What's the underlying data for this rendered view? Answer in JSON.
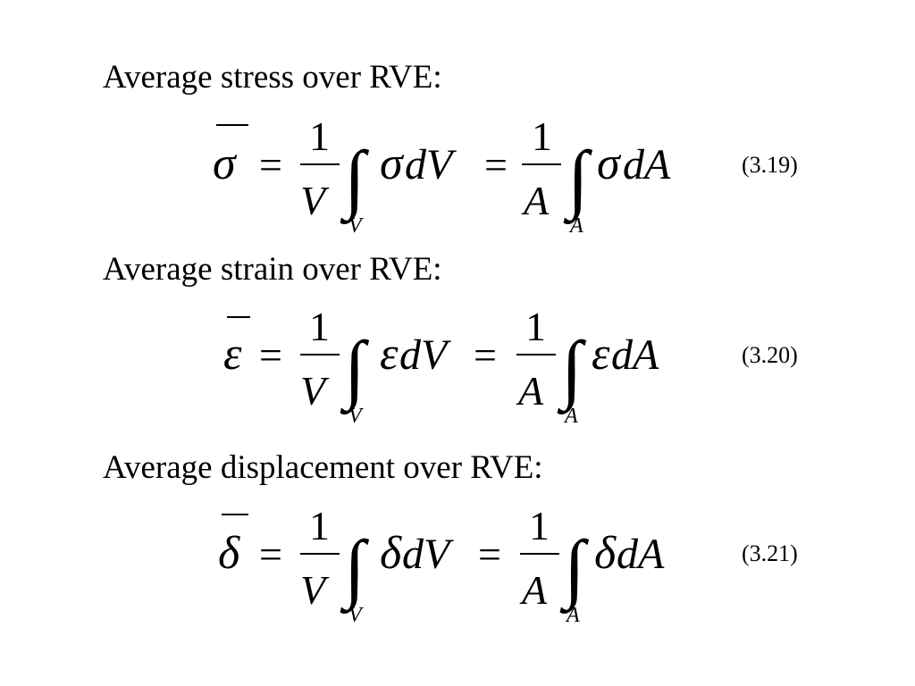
{
  "sections": [
    {
      "heading": "Average stress over RVE:",
      "number": "(3.19)",
      "symbol": "σ",
      "equals": "=",
      "one": "1",
      "dV": "dV",
      "dA": "dA",
      "V": "V",
      "A": "A"
    },
    {
      "heading": "Average strain over RVE:",
      "number": "(3.20)",
      "symbol": "ε",
      "equals": "=",
      "one": "1",
      "dV": "dV",
      "dA": "dA",
      "V": "V",
      "A": "A"
    },
    {
      "heading": "Average displacement over RVE:",
      "number": "(3.21)",
      "symbol": "δ",
      "equals": "=",
      "one": "1",
      "dV": "dV",
      "dA": "dA",
      "V": "V",
      "A": "A"
    }
  ]
}
